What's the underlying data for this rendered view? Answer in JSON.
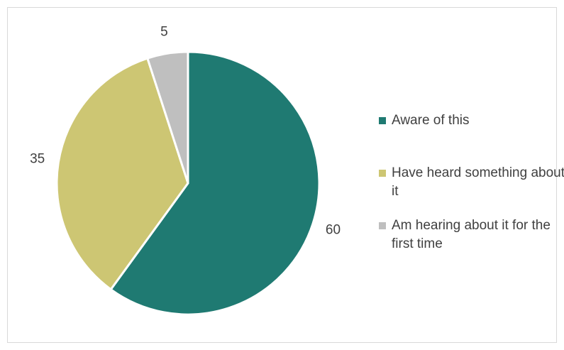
{
  "chart_data": {
    "type": "pie",
    "categories": [
      "Aware of this",
      "Have heard something about it",
      "Am hearing about it for the first time"
    ],
    "values": [
      60,
      35,
      5
    ],
    "colors": [
      "#1f7a72",
      "#cdc673",
      "#bfbfbf"
    ],
    "legend": "right"
  }
}
